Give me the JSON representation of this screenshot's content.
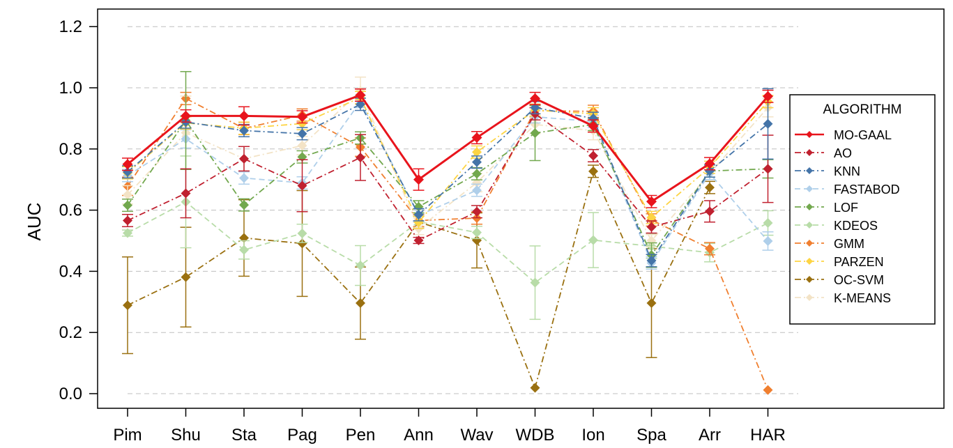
{
  "chart_data": {
    "type": "line",
    "ylabel": "AUC",
    "xlabel": "",
    "ylim": [
      -0.05,
      1.25
    ],
    "yticks": [
      0.0,
      0.2,
      0.4,
      0.6,
      0.8,
      1.0,
      1.2
    ],
    "ytick_labels": [
      "0.0",
      "0.2",
      "0.4",
      "0.6",
      "0.8",
      "1.0",
      "1.2"
    ],
    "grid": "horizontal-dashed",
    "categories": [
      "Pim",
      "Shu",
      "Sta",
      "Pag",
      "Pen",
      "Ann",
      "Wav",
      "WDB",
      "Ion",
      "Spa",
      "Arr",
      "HAR"
    ],
    "legend_title": "ALGORITHM",
    "legend_position": "right",
    "series": [
      {
        "name": "OC-SVM",
        "color": "#9A7010",
        "dash": "dashdot",
        "values": [
          0.289,
          0.381,
          0.509,
          0.491,
          0.296,
          0.561,
          0.501,
          0.019,
          0.727,
          0.296,
          0.674,
          null
        ],
        "errors": [
          0.158,
          0.163,
          0.125,
          0.173,
          0.118,
          0.02,
          0.09,
          0.0,
          0.02,
          0.178,
          0.02,
          0.0
        ]
      },
      {
        "name": "KDEOS",
        "color": "#B8DCA8",
        "dash": "dashed",
        "values": [
          0.525,
          0.627,
          0.47,
          0.524,
          0.419,
          0.562,
          0.527,
          0.363,
          0.502,
          0.482,
          0.461,
          0.558
        ],
        "errors": [
          0.01,
          0.15,
          0.03,
          0.03,
          0.065,
          0.02,
          0.02,
          0.12,
          0.09,
          0.04,
          0.03,
          0.04
        ]
      },
      {
        "name": "GMM",
        "color": "#F07F2F",
        "dash": "dashdot",
        "values": [
          0.678,
          0.965,
          0.867,
          0.911,
          0.806,
          0.566,
          0.574,
          0.925,
          0.923,
          0.568,
          0.474,
          0.012
        ],
        "errors": [
          0.03,
          0.02,
          0.02,
          0.02,
          0.03,
          0.02,
          0.02,
          0.02,
          0.02,
          0.02,
          0.02,
          0.0
        ]
      },
      {
        "name": "K-MEANS",
        "color": "#F3E3C6",
        "dash": "dashdot",
        "values": [
          0.65,
          0.853,
          0.768,
          0.811,
          0.99,
          0.54,
          0.69,
          0.88,
          0.86,
          0.5,
          0.72,
          0.935
        ],
        "errors": [
          0.03,
          0.12,
          0.04,
          0.03,
          0.045,
          0.02,
          0.03,
          0.03,
          0.03,
          0.02,
          0.02,
          0.03
        ]
      },
      {
        "name": "FASTABOD",
        "color": "#AFCFEA",
        "dash": "dashed",
        "values": [
          0.713,
          0.833,
          0.705,
          0.689,
          0.955,
          0.583,
          0.665,
          0.905,
          0.89,
          0.427,
          0.72,
          0.499
        ],
        "errors": [
          0.02,
          0.03,
          0.02,
          0.02,
          0.02,
          0.02,
          0.02,
          0.02,
          0.02,
          0.02,
          0.02,
          0.03
        ]
      },
      {
        "name": "PARZEN",
        "color": "#FDD443",
        "dash": "dashdot",
        "values": [
          0.722,
          0.885,
          0.868,
          0.883,
          0.968,
          0.56,
          0.79,
          0.927,
          0.915,
          0.576,
          0.74,
          0.955
        ],
        "errors": [
          0.02,
          0.02,
          0.02,
          0.02,
          0.02,
          0.02,
          0.02,
          0.02,
          0.02,
          0.02,
          0.02,
          0.02
        ]
      },
      {
        "name": "LOF",
        "color": "#72A84E",
        "dash": "dashdot",
        "values": [
          0.616,
          0.893,
          0.617,
          0.774,
          0.836,
          0.611,
          0.719,
          0.852,
          0.88,
          0.453,
          0.728,
          0.735
        ],
        "errors": [
          0.02,
          0.16,
          0.02,
          0.02,
          0.02,
          0.02,
          0.02,
          0.09,
          0.02,
          0.04,
          0.02,
          0.03
        ]
      },
      {
        "name": "AO",
        "color": "#C0202F",
        "dash": "dashdot",
        "values": [
          0.566,
          0.655,
          0.768,
          0.68,
          0.772,
          0.501,
          0.595,
          0.915,
          0.778,
          0.545,
          0.596,
          0.735
        ],
        "errors": [
          0.02,
          0.08,
          0.04,
          0.085,
          0.075,
          0.01,
          0.02,
          0.02,
          0.02,
          0.02,
          0.035,
          0.11
        ]
      },
      {
        "name": "KNN",
        "color": "#4474A8",
        "dash": "dashdot",
        "values": [
          0.725,
          0.888,
          0.86,
          0.85,
          0.946,
          0.585,
          0.757,
          0.935,
          0.9,
          0.435,
          0.728,
          0.882
        ],
        "errors": [
          0.02,
          0.02,
          0.02,
          0.02,
          0.02,
          0.02,
          0.02,
          0.02,
          0.02,
          0.02,
          0.02,
          0.115
        ]
      },
      {
        "name": "MO-GAAL",
        "color": "#E8141C",
        "dash": "solid",
        "values": [
          0.75,
          0.908,
          0.908,
          0.905,
          0.976,
          0.7,
          0.837,
          0.965,
          0.875,
          0.628,
          0.752,
          0.972
        ],
        "errors": [
          0.02,
          0.02,
          0.03,
          0.02,
          0.02,
          0.035,
          0.02,
          0.02,
          0.02,
          0.02,
          0.02,
          0.02
        ]
      }
    ],
    "legend_order": [
      "MO-GAAL",
      "AO",
      "KNN",
      "FASTABOD",
      "LOF",
      "KDEOS",
      "GMM",
      "PARZEN",
      "OC-SVM",
      "K-MEANS"
    ]
  }
}
